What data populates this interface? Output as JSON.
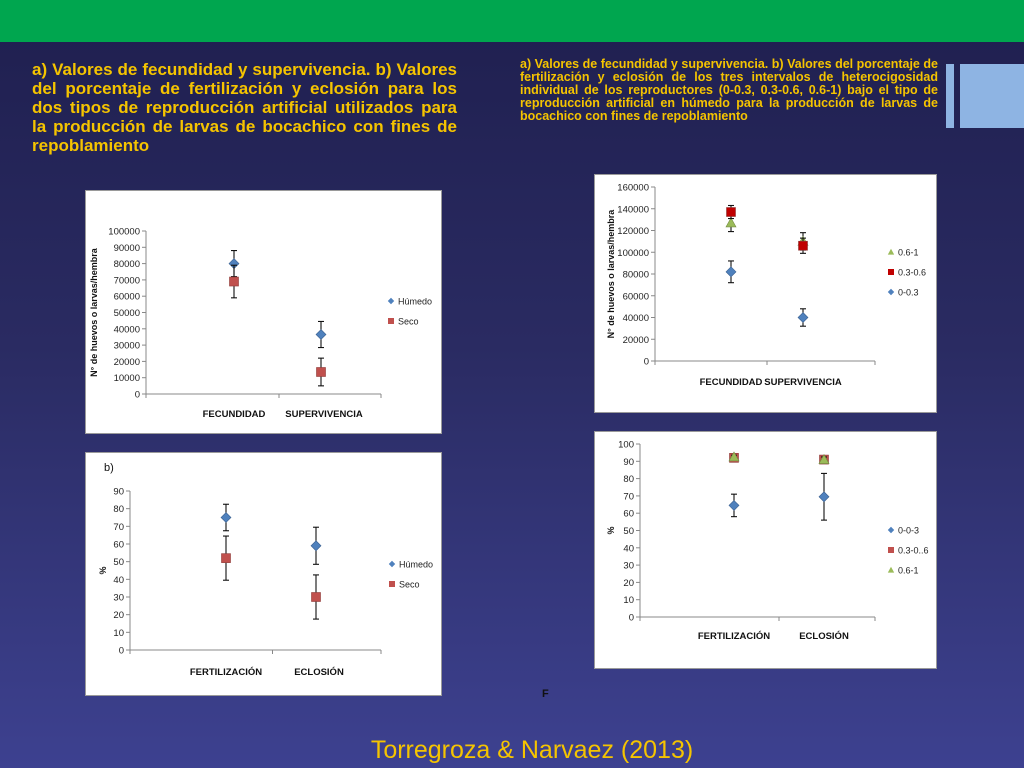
{
  "slide": {
    "caption_left": "a) Valores de fecundidad y supervivencia. b) Valores del porcentaje de fertilización y eclosión para los dos tipos de reproducción artificial utilizados para la producción de larvas de bocachico con fines de repoblamiento",
    "caption_right": "a) Valores de fecundidad y supervivencia. b) Valores del porcentaje de fertilización y eclosión de los tres intervalos de heterocigosidad individual de los reproductores (0-0.3, 0.3-0.6, 0.6-1) bajo el tipo de reproducción artificial en húmedo para la producción de larvas de bocachico con fines de repoblamiento",
    "citation": "Torregroza & Narvaez (2013)",
    "f_mark": "F",
    "colors": {
      "top_bar": "#00a64f",
      "caption": "#f5c400",
      "blue": "#4f81bd",
      "red": "#c0504d",
      "green": "#9bbb59"
    }
  },
  "chart_data": [
    {
      "type": "scatter",
      "panel_label": "",
      "ylabel": "N° de huevos o  larvas/hembra",
      "xlabel": "",
      "categories": [
        "FECUNDIDAD",
        "SUPERVIVENCIA"
      ],
      "ylim": [
        0,
        100000
      ],
      "yticks": [
        "0",
        "10000",
        "20000",
        "30000",
        "40000",
        "50000",
        "60000",
        "70000",
        "80000",
        "90000",
        "100000"
      ],
      "legend_position": "right",
      "series": [
        {
          "name": "Húmedo",
          "color": "#4f81bd",
          "marker": "diamond",
          "values": [
            80000,
            36500
          ],
          "err": [
            8000,
            8000
          ]
        },
        {
          "name": "Seco",
          "color": "#c0504d",
          "marker": "square",
          "values": [
            69000,
            13500
          ],
          "err": [
            10000,
            8500
          ]
        }
      ]
    },
    {
      "type": "scatter",
      "panel_label": "b)",
      "ylabel": "%",
      "xlabel": "",
      "categories": [
        "FERTILIZACIÓN",
        "ECLOSIÓN"
      ],
      "ylim": [
        0,
        90
      ],
      "yticks": [
        "0",
        "10",
        "20",
        "30",
        "40",
        "50",
        "60",
        "70",
        "80",
        "90"
      ],
      "legend_position": "right",
      "series": [
        {
          "name": "Húmedo",
          "color": "#4f81bd",
          "marker": "diamond",
          "values": [
            75,
            59
          ],
          "err": [
            7.5,
            10.5
          ]
        },
        {
          "name": "Seco",
          "color": "#c0504d",
          "marker": "square",
          "values": [
            52,
            30
          ],
          "err": [
            12.5,
            12.5
          ]
        }
      ]
    },
    {
      "type": "scatter",
      "panel_label": "",
      "ylabel": "N° de huevos o  larvas/hembra",
      "xlabel": "",
      "categories": [
        "FECUNDIDAD",
        "SUPERVIVENCIA"
      ],
      "ylim": [
        0,
        160000
      ],
      "yticks": [
        "0",
        "20000",
        "40000",
        "60000",
        "80000",
        "100000",
        "120000",
        "140000",
        "160000"
      ],
      "legend_position": "right",
      "series": [
        {
          "name": "0.6-1",
          "color": "#9bbb59",
          "marker": "triangle",
          "values": [
            127000,
            110000
          ],
          "err": [
            8000,
            8000
          ]
        },
        {
          "name": "0.3-0.6",
          "color": "#c00000",
          "marker": "square",
          "values": [
            137000,
            106000
          ],
          "err": [
            6000,
            7000
          ]
        },
        {
          "name": "0-0.3",
          "color": "#4f81bd",
          "marker": "diamond",
          "values": [
            82000,
            40000
          ],
          "err": [
            10000,
            8000
          ]
        }
      ]
    },
    {
      "type": "scatter",
      "panel_label": "",
      "ylabel": "%",
      "xlabel": "",
      "categories": [
        "FERTILIZACIÓN",
        "ECLOSIÓN"
      ],
      "ylim": [
        0,
        100
      ],
      "yticks": [
        "0",
        "10",
        "20",
        "30",
        "40",
        "50",
        "60",
        "70",
        "80",
        "90",
        "100"
      ],
      "legend_position": "right",
      "series": [
        {
          "name": "0-0-3",
          "color": "#4f81bd",
          "marker": "diamond",
          "values": [
            64.5,
            69.5
          ],
          "err": [
            6.5,
            13.5
          ]
        },
        {
          "name": "0.3-0..6",
          "color": "#c0504d",
          "marker": "square",
          "values": [
            92,
            91
          ],
          "err": [
            1,
            2
          ]
        },
        {
          "name": "0.6-1",
          "color": "#9bbb59",
          "marker": "triangle",
          "values": [
            92.5,
            91
          ],
          "err": [
            1,
            1.5
          ]
        }
      ]
    }
  ]
}
